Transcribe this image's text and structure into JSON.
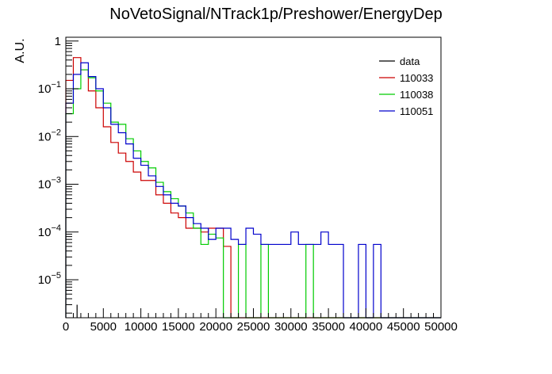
{
  "chart_data": {
    "type": "line",
    "title": "NoVetoSignal/NTrack1p/Preshower/EnergyDep",
    "xlabel": "",
    "ylabel": "A.U.",
    "xlim": [
      0,
      50000
    ],
    "ylim": [
      1.6e-06,
      1.2
    ],
    "ylog": true,
    "grid": false,
    "legend_position": "top-right",
    "x_tick_labels": [
      "0",
      "5000",
      "10000",
      "15000",
      "20000",
      "25000",
      "30000",
      "35000",
      "40000",
      "45000",
      "50000"
    ],
    "y_tick_labels": [
      {
        "base": "1",
        "exp": ""
      },
      {
        "base": "10",
        "exp": "−1"
      },
      {
        "base": "10",
        "exp": "−2"
      },
      {
        "base": "10",
        "exp": "−3"
      },
      {
        "base": "10",
        "exp": "−4"
      },
      {
        "base": "10",
        "exp": "−5"
      }
    ],
    "bin_width": 1000,
    "series": [
      {
        "name": "data",
        "color": "#000000",
        "values": [
          0,
          3e-06
        ]
      },
      {
        "name": "110033",
        "color": "#cc0000",
        "values": [
          0.15,
          0.45,
          0.25,
          0.09,
          0.04,
          0.016,
          0.0075,
          0.0045,
          0.003,
          0.0018,
          0.0012,
          0.0012,
          0.0006,
          0.0004,
          0.00025,
          0.0002,
          0.00012,
          0.00012,
          0.0001,
          0.00012,
          0.00012,
          5e-05,
          0,
          0,
          0,
          0,
          0,
          0,
          0,
          0,
          0,
          0,
          0,
          0,
          0,
          0,
          0,
          0,
          0,
          0,
          0,
          0,
          0,
          0,
          0,
          0,
          0,
          0,
          0,
          0
        ]
      },
      {
        "name": "110038",
        "color": "#00cc00",
        "values": [
          0.03,
          0.1,
          0.25,
          0.17,
          0.09,
          0.05,
          0.02,
          0.018,
          0.009,
          0.005,
          0.003,
          0.0022,
          0.0011,
          0.0007,
          0.0005,
          0.00035,
          0.00025,
          0.00012,
          5.5e-05,
          9e-05,
          7.5e-05,
          0,
          0,
          5.5e-05,
          0,
          0,
          5.5e-05,
          0,
          0,
          0,
          0,
          0,
          5.5e-05,
          0,
          0,
          0,
          0,
          0,
          0,
          0,
          0,
          0,
          0,
          0,
          0,
          0,
          0,
          0,
          0,
          0
        ]
      },
      {
        "name": "110051",
        "color": "#0000cc",
        "values": [
          0.05,
          0.2,
          0.35,
          0.18,
          0.1,
          0.04,
          0.018,
          0.012,
          0.007,
          0.0035,
          0.0025,
          0.0015,
          0.0009,
          0.0006,
          0.0004,
          0.00035,
          0.0002,
          0.00015,
          0.00012,
          7e-05,
          0.00012,
          0.00012,
          7e-05,
          5.5e-05,
          0.00012,
          9e-05,
          5.5e-05,
          5.5e-05,
          5.5e-05,
          5.5e-05,
          0.0001,
          5.5e-05,
          5.5e-05,
          5.5e-05,
          0.0001,
          5.5e-05,
          5.5e-05,
          0,
          0,
          5.5e-05,
          0,
          5.5e-05,
          0,
          0,
          0,
          0,
          0,
          0,
          0,
          0
        ]
      }
    ]
  }
}
